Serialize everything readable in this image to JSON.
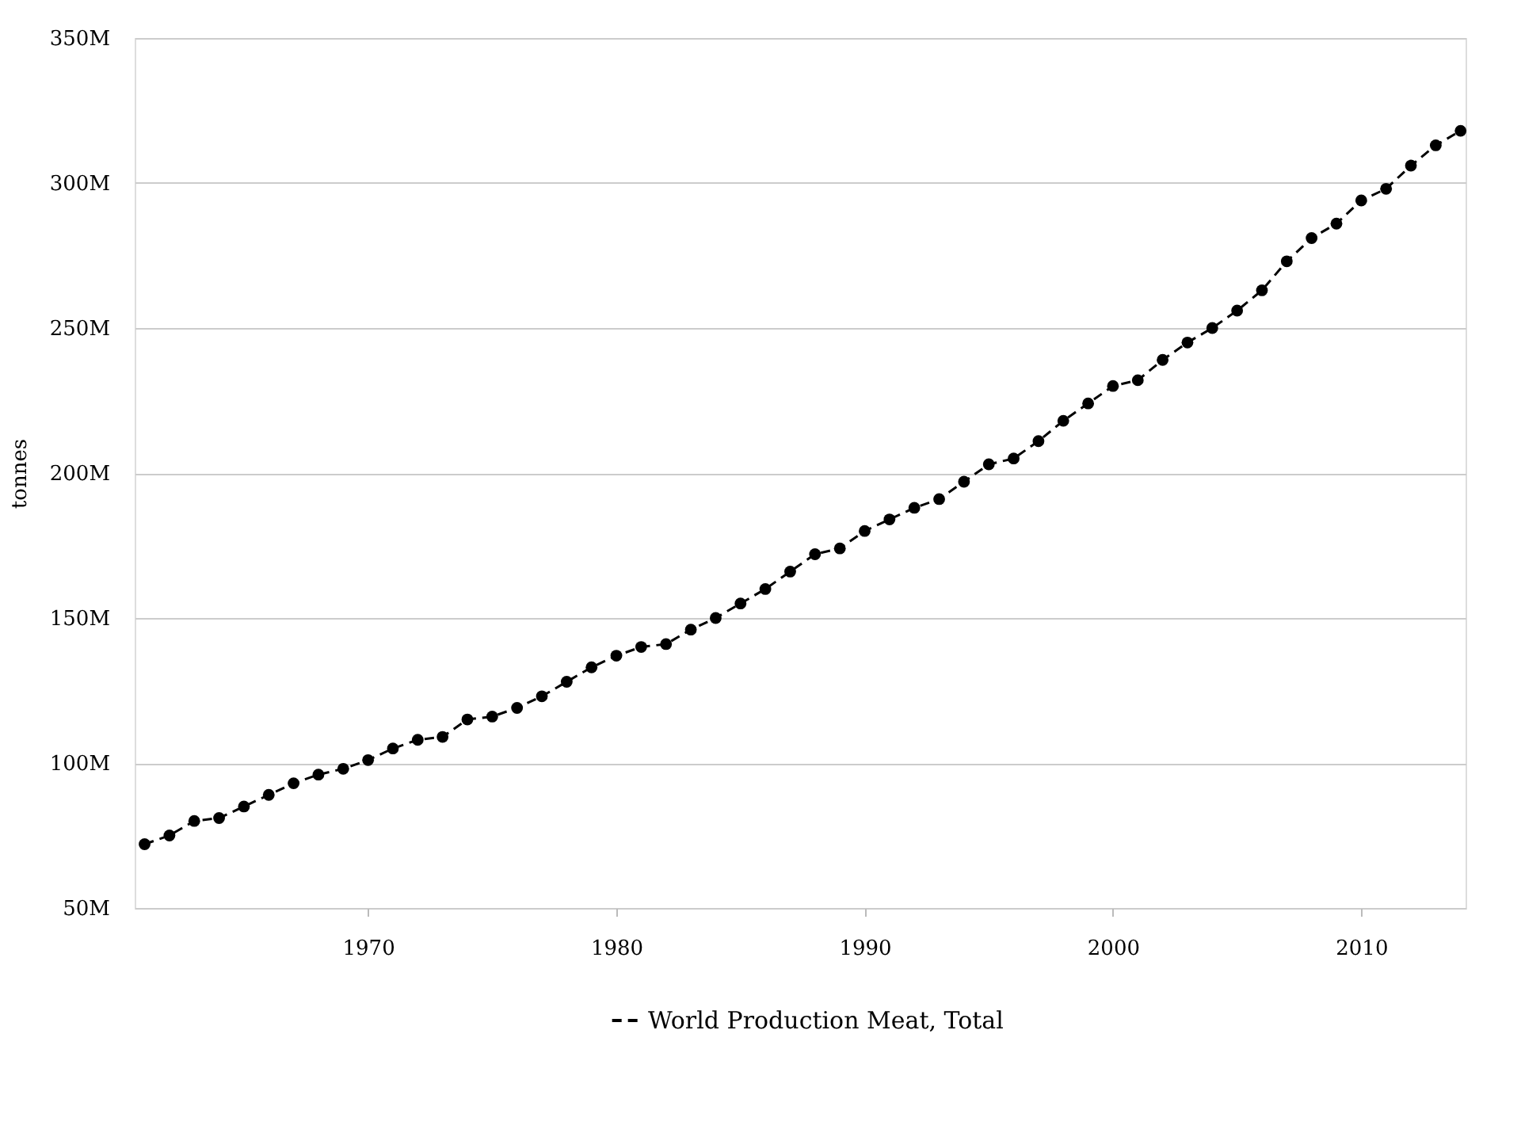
{
  "chart_data": {
    "type": "line",
    "ylabel": "tonnes",
    "x": [
      1961,
      1962,
      1963,
      1964,
      1965,
      1966,
      1967,
      1968,
      1969,
      1970,
      1971,
      1972,
      1973,
      1974,
      1975,
      1976,
      1977,
      1978,
      1979,
      1980,
      1981,
      1982,
      1983,
      1984,
      1985,
      1986,
      1987,
      1988,
      1989,
      1990,
      1991,
      1992,
      1993,
      1994,
      1995,
      1996,
      1997,
      1998,
      1999,
      2000,
      2001,
      2002,
      2003,
      2004,
      2005,
      2006,
      2007,
      2008,
      2009,
      2010,
      2011,
      2012,
      2013,
      2014
    ],
    "series": [
      {
        "name": "World Production Meat, Total",
        "color": "#000000",
        "values": [
          72,
          75,
          80,
          81,
          85,
          89,
          93,
          96,
          98,
          101,
          105,
          108,
          109,
          115,
          116,
          119,
          123,
          128,
          133,
          137,
          140,
          141,
          146,
          150,
          155,
          160,
          166,
          172,
          174,
          180,
          184,
          188,
          191,
          197,
          203,
          205,
          211,
          218,
          224,
          230,
          232,
          239,
          245,
          250,
          256,
          263,
          273,
          281,
          286,
          294,
          298,
          306,
          313,
          318
        ]
      }
    ],
    "xlim": [
      1960.6,
      2014.2
    ],
    "xticks": [
      1970,
      1980,
      1990,
      2000,
      2010
    ],
    "ylim": [
      50,
      350
    ],
    "yticks": [
      {
        "value": 50,
        "label": "50M"
      },
      {
        "value": 100,
        "label": "100M"
      },
      {
        "value": 150,
        "label": "150M"
      },
      {
        "value": 200,
        "label": "200M"
      },
      {
        "value": 250,
        "label": "250M"
      },
      {
        "value": 300,
        "label": "300M"
      },
      {
        "value": 350,
        "label": "350M"
      }
    ],
    "grid": "y",
    "legend": "bottom",
    "marker": "circle",
    "line_style": "dashed"
  }
}
